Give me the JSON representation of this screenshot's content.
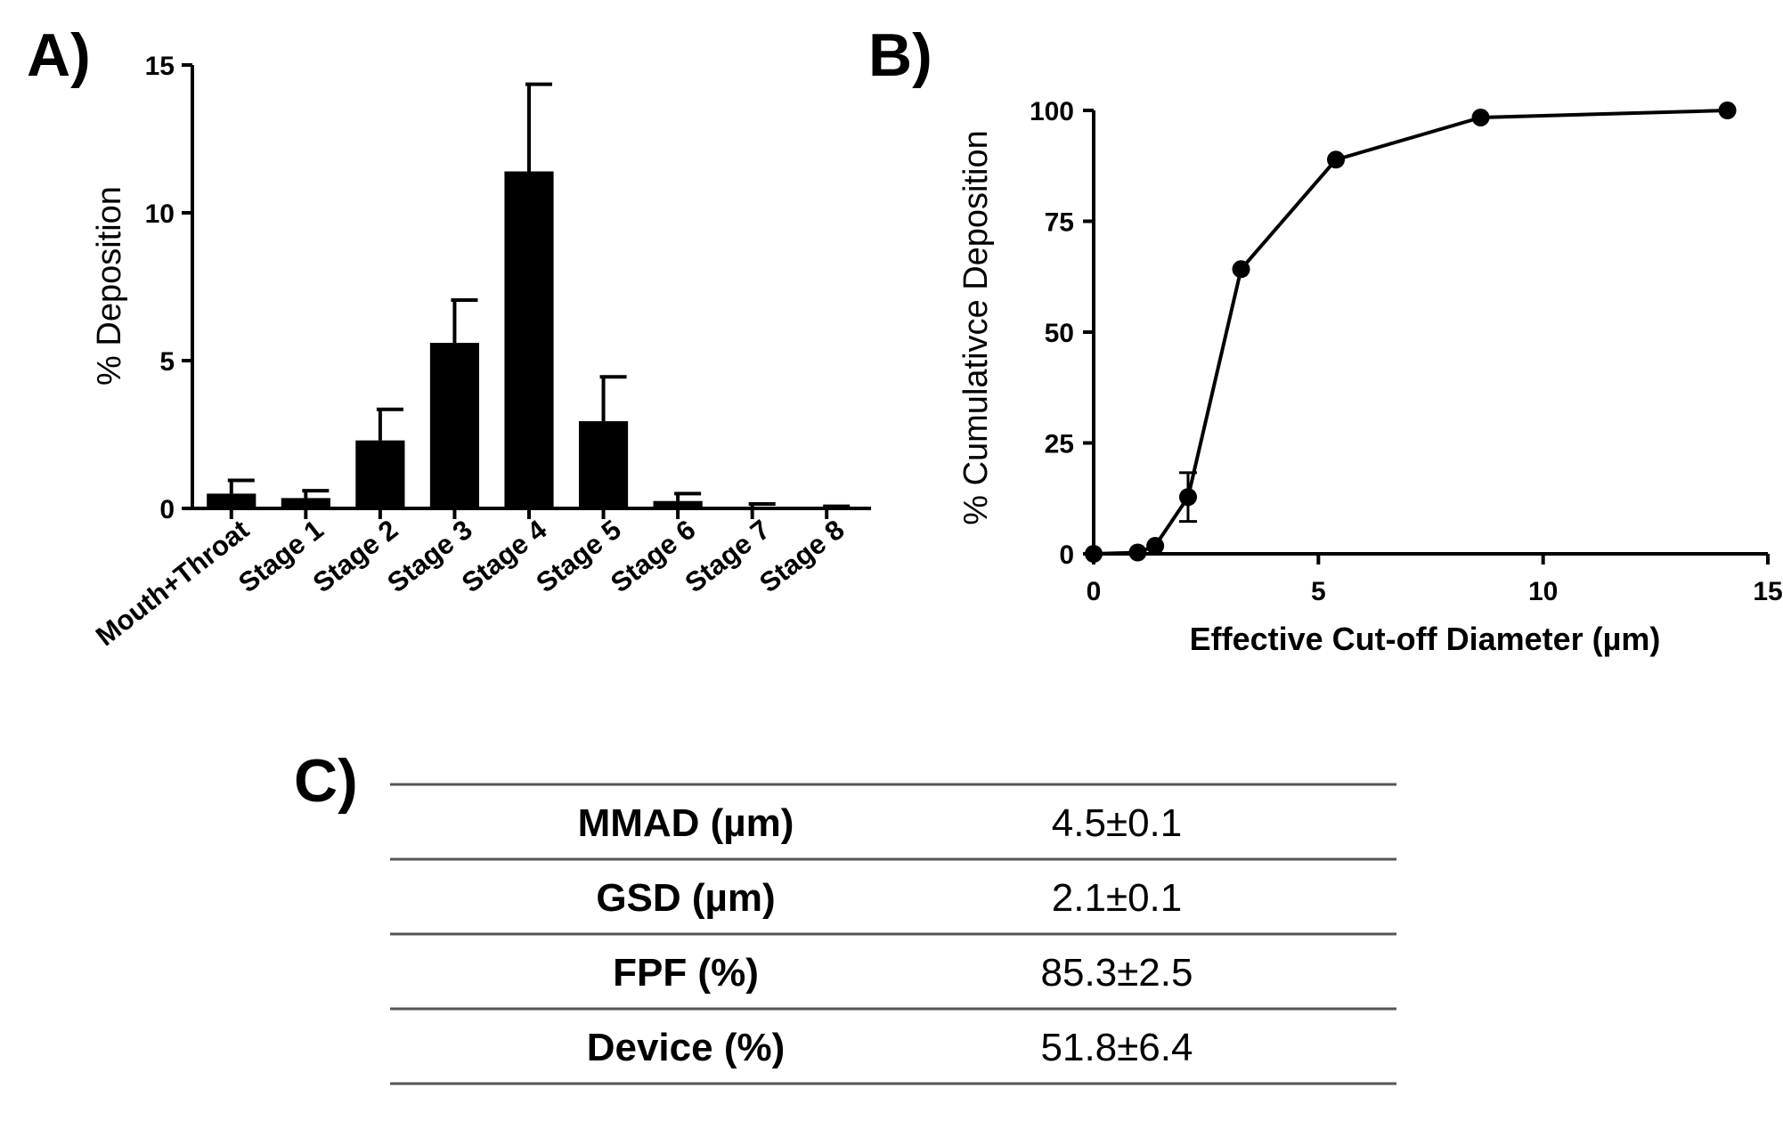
{
  "chart_data": [
    {
      "panel": "A)",
      "type": "bar",
      "title": "",
      "xlabel": "",
      "ylabel": "% Deposition",
      "ylim": [
        0,
        15
      ],
      "yticks": [
        "0",
        "5",
        "10",
        "15"
      ],
      "categories": [
        "Mouth+Throat",
        "Stage 1",
        "Stage 2",
        "Stage 3",
        "Stage 4",
        "Stage 5",
        "Stage 6",
        "Stage 7",
        "Stage 8"
      ],
      "values": [
        0.5,
        0.35,
        2.3,
        5.6,
        11.4,
        2.95,
        0.25,
        0.05,
        0.02
      ],
      "error": [
        0.45,
        0.25,
        1.05,
        1.45,
        2.95,
        1.5,
        0.25,
        0.1,
        0.05
      ],
      "color": "#000000"
    },
    {
      "panel": "B)",
      "type": "line",
      "title": "",
      "xlabel": "Effective Cut-off Diameter (µm)",
      "ylabel": "% Cumulativce Deposition",
      "xlim": [
        0,
        15
      ],
      "ylim": [
        0,
        100
      ],
      "xticks": [
        "0",
        "5",
        "10",
        "15"
      ],
      "yticks": [
        "0",
        "25",
        "50",
        "75",
        "100"
      ],
      "x": [
        0,
        0.98,
        1.37,
        2.1,
        3.28,
        5.39,
        8.61,
        14.1
      ],
      "y": [
        0,
        0.3,
        1.8,
        12.8,
        64.2,
        88.9,
        98.4,
        100
      ],
      "error": [
        0,
        0,
        0,
        5.5,
        0,
        0,
        0,
        0
      ],
      "color": "#000000"
    }
  ],
  "table": {
    "panel": "C)",
    "rows": [
      {
        "label": "MMAD (µm)",
        "value": "4.5±0.1"
      },
      {
        "label": "GSD (µm)",
        "value": "2.1±0.1"
      },
      {
        "label": "FPF (%)",
        "value": "85.3±2.5"
      },
      {
        "label": "Device (%)",
        "value": "51.8±6.4"
      }
    ]
  }
}
